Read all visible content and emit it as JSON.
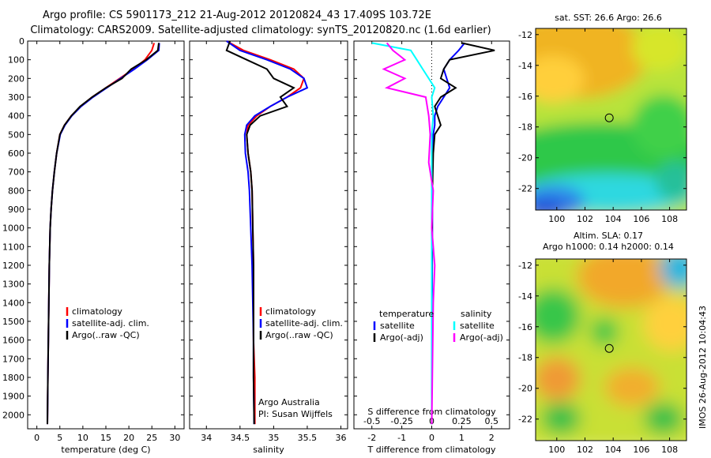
{
  "title_line1": "Argo profile: CS 5901173_212 21-Aug-2012 20120824_43 17.409S 103.72E",
  "title_line2": "Climatology: CARS2009. Satellite-adjusted climatology: synTS_20120820.nc (1.6d earlier)",
  "side_label": "IMOS 26-Aug-2012 10:04:43",
  "colors": {
    "climatology": "#ff0000",
    "satellite": "#0000ff",
    "argo": "#000000",
    "sat_salinity": "#00ffff",
    "argo_salinity_adj": "#ff00ff"
  },
  "chart_data": [
    {
      "id": "temperature",
      "type": "line",
      "xlabel": "temperature (deg C)",
      "ylim": [
        2075,
        0
      ],
      "xlim": [
        -2,
        32
      ],
      "xticks": [
        0,
        5,
        10,
        15,
        20,
        25,
        30
      ],
      "yticks": [
        0,
        100,
        200,
        300,
        400,
        500,
        600,
        700,
        800,
        900,
        1000,
        1100,
        1200,
        1300,
        1400,
        1500,
        1600,
        1700,
        1800,
        1900,
        2000
      ],
      "legend": [
        "climatology",
        "satellite-adj. clim.",
        "Argo(..raw -QC)"
      ],
      "series": [
        {
          "name": "climatology",
          "color": "#ff0000",
          "x": [
            25.5,
            25,
            23.5,
            21,
            18,
            15,
            12,
            9.5,
            7.5,
            6,
            5,
            4.3,
            3.8,
            3.4,
            3.1,
            2.9,
            2.7,
            2.6,
            2.5,
            2.4,
            2.3
          ],
          "y": [
            10,
            50,
            100,
            150,
            200,
            250,
            300,
            350,
            400,
            450,
            500,
            600,
            700,
            800,
            900,
            1000,
            1200,
            1400,
            1600,
            1800,
            2050
          ]
        },
        {
          "name": "satellite-adj. clim.",
          "color": "#0000ff",
          "x": [
            26.6,
            26.5,
            24,
            21.2,
            18.2,
            15.2,
            12.2,
            9.6,
            7.6,
            6.1,
            5.1,
            4.3,
            3.8,
            3.4,
            3.1,
            2.9,
            2.7,
            2.6,
            2.5,
            2.4,
            2.3
          ],
          "y": [
            10,
            50,
            100,
            150,
            200,
            250,
            300,
            350,
            400,
            450,
            500,
            600,
            700,
            800,
            900,
            1000,
            1200,
            1400,
            1600,
            1800,
            2050
          ]
        },
        {
          "name": "Argo(..raw -QC)",
          "color": "#000000",
          "x": [
            26.5,
            26.3,
            23.8,
            20.5,
            18.5,
            15,
            12,
            9.4,
            7.5,
            6,
            5,
            4.3,
            3.8,
            3.4,
            3.1,
            2.9,
            2.7,
            2.6,
            2.5,
            2.4,
            2.3
          ],
          "y": [
            10,
            50,
            100,
            150,
            200,
            250,
            300,
            350,
            400,
            450,
            500,
            600,
            700,
            800,
            900,
            1000,
            1200,
            1400,
            1600,
            1800,
            2050
          ]
        }
      ]
    },
    {
      "id": "salinity",
      "type": "line",
      "xlabel": "salinity",
      "xlim": [
        33.75,
        36.1
      ],
      "ylim": [
        2075,
        0
      ],
      "xticks": [
        34,
        34.5,
        35,
        35.5,
        36
      ],
      "legend": [
        "climatology",
        "satellite-adj. clim.",
        "Argo(..raw -QC)"
      ],
      "annotations": [
        "Argo Australia",
        "PI: Susan Wijffels"
      ],
      "series": [
        {
          "name": "climatology",
          "color": "#ff0000",
          "x": [
            34.3,
            34.55,
            34.95,
            35.3,
            35.45,
            35.4,
            35.2,
            34.95,
            34.75,
            34.62,
            34.6,
            34.62,
            34.66,
            34.68,
            34.69,
            34.7,
            34.7,
            34.7,
            34.72,
            34.72
          ],
          "y": [
            0,
            50,
            100,
            150,
            200,
            250,
            300,
            350,
            400,
            450,
            500,
            600,
            700,
            800,
            1000,
            1200,
            1400,
            1600,
            1800,
            2050
          ]
        },
        {
          "name": "satellite-adj. clim.",
          "color": "#0000ff",
          "x": [
            34.3,
            34.5,
            34.9,
            35.25,
            35.45,
            35.5,
            35.2,
            34.95,
            34.72,
            34.6,
            34.57,
            34.58,
            34.62,
            34.64,
            34.66,
            34.68,
            34.69,
            34.7,
            34.7,
            34.71
          ],
          "y": [
            0,
            50,
            100,
            150,
            200,
            250,
            300,
            350,
            400,
            450,
            500,
            600,
            700,
            800,
            1000,
            1200,
            1400,
            1600,
            1800,
            2050
          ]
        },
        {
          "name": "Argo(..raw -QC)",
          "color": "#000000",
          "x": [
            34.35,
            34.3,
            34.6,
            34.9,
            35.0,
            35.3,
            35.1,
            35.2,
            34.8,
            34.65,
            34.6,
            34.62,
            34.66,
            34.68,
            34.69,
            34.7,
            34.7,
            34.7,
            34.7,
            34.71
          ],
          "y": [
            0,
            50,
            100,
            150,
            200,
            250,
            300,
            350,
            400,
            450,
            500,
            600,
            700,
            800,
            1000,
            1200,
            1400,
            1600,
            1800,
            2050
          ]
        }
      ]
    },
    {
      "id": "difference",
      "type": "line",
      "xlabel": "T difference from climatology",
      "xlabel_top": "S difference from climatology",
      "xlim": [
        -2.6,
        2.6
      ],
      "ylim": [
        2075,
        0
      ],
      "xticks_T": [
        -2,
        -1,
        0,
        1,
        2
      ],
      "xticks_S_labels": [
        "-0.5",
        "-0.25",
        "0",
        "0.25",
        "0.5"
      ],
      "legend_temperature_title": "temperature",
      "legend_salinity_title": "salinity",
      "legend_temperature": [
        "satellite",
        "Argo(-adj)"
      ],
      "legend_salinity": [
        "satellite",
        "Argo(-adj)"
      ],
      "series": [
        {
          "name": "temperature satellite",
          "color": "#0000ff",
          "x": [
            1.1,
            0.9,
            0.6,
            0.4,
            0.5,
            0.6,
            0.4,
            0.2,
            0.1,
            0.1,
            0.05,
            0.03,
            0.02,
            0.02,
            0.01,
            0.0,
            0.0
          ],
          "y": [
            10,
            50,
            100,
            150,
            200,
            250,
            300,
            350,
            400,
            450,
            500,
            600,
            800,
            1000,
            1400,
            1800,
            2050
          ]
        },
        {
          "name": "temperature Argo(-adj)",
          "color": "#000000",
          "x": [
            1.0,
            2.1,
            0.6,
            0.4,
            0.3,
            0.8,
            0.3,
            0.1,
            0.2,
            0.3,
            0.1,
            0.05,
            0.02,
            0.01,
            0.0,
            0.0,
            0.0
          ],
          "y": [
            10,
            50,
            100,
            150,
            200,
            250,
            300,
            350,
            400,
            450,
            500,
            600,
            800,
            1000,
            1400,
            1800,
            2050
          ]
        },
        {
          "name": "salinity satellite",
          "color": "#00ffff",
          "x": [
            -2.0,
            -0.7,
            -0.5,
            -0.3,
            -0.1,
            0.1,
            0.0,
            0.05,
            0.0,
            0.0,
            0.0,
            0.0,
            0.0,
            0.0
          ],
          "y": [
            10,
            50,
            100,
            150,
            200,
            250,
            300,
            400,
            500,
            600,
            800,
            1000,
            1400,
            2050
          ]
        },
        {
          "name": "salinity Argo(-adj)",
          "color": "#ff00ff",
          "x": [
            -1.5,
            -1.3,
            -0.9,
            -1.6,
            -0.9,
            -1.5,
            -0.2,
            -0.1,
            -0.05,
            -0.1,
            0.05,
            0.0,
            0.1,
            0.05,
            0.0
          ],
          "y": [
            10,
            50,
            100,
            150,
            200,
            250,
            300,
            400,
            500,
            650,
            800,
            1000,
            1200,
            1400,
            2050
          ]
        }
      ]
    },
    {
      "id": "sst_map",
      "type": "heatmap",
      "title": "sat. SST: 26.6  Argo: 26.6",
      "xticks": [
        100,
        102,
        104,
        106,
        108
      ],
      "yticks": [
        -12,
        -14,
        -16,
        -18,
        -20,
        -22
      ],
      "xlim": [
        98.5,
        109.2
      ],
      "ylim": [
        -23.4,
        -11.6
      ],
      "marker": [
        103.72,
        -17.409
      ]
    },
    {
      "id": "sla_map",
      "type": "heatmap",
      "title": "Altim. SLA: 0.17",
      "subtitle": "Argo h1000: 0.14  h2000: 0.14",
      "xticks": [
        100,
        102,
        104,
        106,
        108
      ],
      "yticks": [
        -12,
        -14,
        -16,
        -18,
        -20,
        -22
      ],
      "xlim": [
        98.5,
        109.2
      ],
      "ylim": [
        -23.4,
        -11.6
      ],
      "marker": [
        103.72,
        -17.409
      ]
    }
  ]
}
